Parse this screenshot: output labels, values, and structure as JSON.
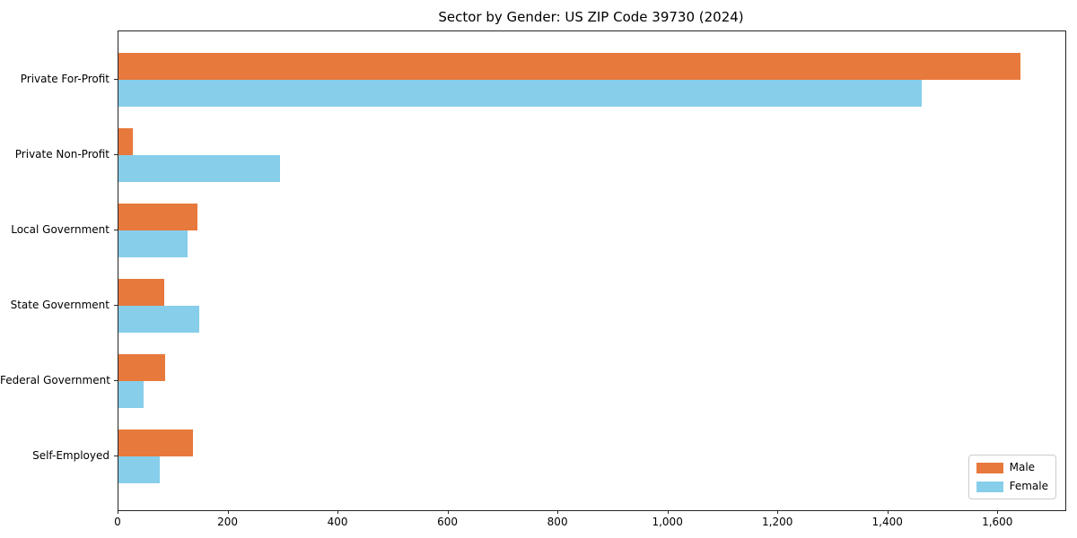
{
  "chart_data": {
    "type": "bar",
    "orientation": "horizontal",
    "title": "Sector by Gender: US ZIP Code 39730 (2024)",
    "categories": [
      "Private For-Profit",
      "Private Non-Profit",
      "Local Government",
      "State Government",
      "Federal Government",
      "Self-Employed"
    ],
    "series": [
      {
        "name": "Male",
        "color": "#E8793C",
        "values": [
          1640,
          26,
          144,
          83,
          85,
          135
        ]
      },
      {
        "name": "Female",
        "color": "#87CEEB",
        "values": [
          1461,
          294,
          126,
          147,
          46,
          75
        ]
      }
    ],
    "xlim": [
      0,
      1722
    ],
    "xticks": [
      0,
      200,
      400,
      600,
      800,
      1000,
      1200,
      1400,
      1600
    ],
    "xtick_labels": [
      "0",
      "200",
      "400",
      "600",
      "800",
      "1,000",
      "1,200",
      "1,400",
      "1,600"
    ],
    "ylabel": "",
    "xlabel": "",
    "grid": false,
    "legend_position": "lower right",
    "spine_color": "#262626",
    "legend_border_color": "#cccccc"
  }
}
